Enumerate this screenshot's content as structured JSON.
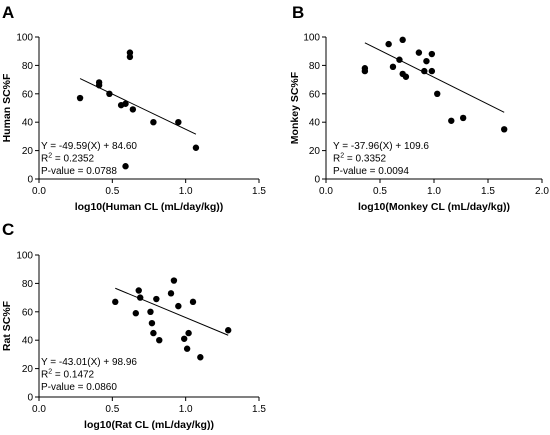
{
  "chart_data": [
    {
      "panel": "A",
      "type": "scatter",
      "xlabel": "log10(Human CL (mL/day/kg))",
      "ylabel": "Human SC%F",
      "xlim": [
        0,
        1.5
      ],
      "ylim": [
        0,
        100
      ],
      "xticks": [
        0.0,
        0.5,
        1.0,
        1.5
      ],
      "xtick_labels": [
        "0.0",
        "0.5",
        "1.0",
        "1.5"
      ],
      "yticks": [
        0,
        20,
        40,
        60,
        80,
        100
      ],
      "ytick_labels": [
        "0",
        "20",
        "40",
        "60",
        "80",
        "100"
      ],
      "points": [
        {
          "x": 0.28,
          "y": 57
        },
        {
          "x": 0.41,
          "y": 68
        },
        {
          "x": 0.41,
          "y": 66
        },
        {
          "x": 0.48,
          "y": 60
        },
        {
          "x": 0.56,
          "y": 52
        },
        {
          "x": 0.59,
          "y": 53
        },
        {
          "x": 0.59,
          "y": 9
        },
        {
          "x": 0.62,
          "y": 89
        },
        {
          "x": 0.62,
          "y": 86
        },
        {
          "x": 0.64,
          "y": 49
        },
        {
          "x": 0.78,
          "y": 40
        },
        {
          "x": 0.95,
          "y": 40
        },
        {
          "x": 1.07,
          "y": 22
        }
      ],
      "regression": {
        "slope": -49.59,
        "intercept": 84.6,
        "x_range": [
          0.28,
          1.07
        ]
      },
      "annotation": {
        "equation": "Y = -49.59(X) + 84.60",
        "r2_label": "R",
        "r2_value": " = 0.2352",
        "p_value": "P-value = 0.0788"
      }
    },
    {
      "panel": "B",
      "type": "scatter",
      "xlabel": "log10(Monkey CL (mL/day/kg))",
      "ylabel": "Monkey SC%F",
      "xlim": [
        0,
        2.0
      ],
      "ylim": [
        0,
        100
      ],
      "xticks": [
        0.0,
        0.5,
        1.0,
        1.5,
        2.0
      ],
      "xtick_labels": [
        "0.0",
        "0.5",
        "1.0",
        "1.5",
        "2.0"
      ],
      "yticks": [
        0,
        20,
        40,
        60,
        80,
        100
      ],
      "ytick_labels": [
        "0",
        "20",
        "40",
        "60",
        "80",
        "100"
      ],
      "points": [
        {
          "x": 0.36,
          "y": 78
        },
        {
          "x": 0.36,
          "y": 76
        },
        {
          "x": 0.58,
          "y": 95
        },
        {
          "x": 0.62,
          "y": 79
        },
        {
          "x": 0.68,
          "y": 84
        },
        {
          "x": 0.71,
          "y": 98
        },
        {
          "x": 0.71,
          "y": 74
        },
        {
          "x": 0.74,
          "y": 72
        },
        {
          "x": 0.86,
          "y": 89
        },
        {
          "x": 0.91,
          "y": 76
        },
        {
          "x": 0.93,
          "y": 83
        },
        {
          "x": 0.98,
          "y": 88
        },
        {
          "x": 0.98,
          "y": 76
        },
        {
          "x": 1.03,
          "y": 60
        },
        {
          "x": 1.16,
          "y": 41
        },
        {
          "x": 1.27,
          "y": 43
        },
        {
          "x": 1.65,
          "y": 35
        }
      ],
      "regression": {
        "slope": -37.96,
        "intercept": 109.6,
        "x_range": [
          0.36,
          1.65
        ]
      },
      "annotation": {
        "equation": "Y = -37.96(X) + 109.6",
        "r2_label": "R",
        "r2_value": " = 0.3352",
        "p_value": "P-value = 0.0094"
      }
    },
    {
      "panel": "C",
      "type": "scatter",
      "xlabel": "log10(Rat CL (mL/day/kg))",
      "ylabel": "Rat SC%F",
      "xlim": [
        0,
        1.5
      ],
      "ylim": [
        0,
        100
      ],
      "xticks": [
        0.0,
        0.5,
        1.0,
        1.5
      ],
      "xtick_labels": [
        "0.0",
        "0.5",
        "1.0",
        "1.5"
      ],
      "yticks": [
        0,
        20,
        40,
        60,
        80,
        100
      ],
      "ytick_labels": [
        "0",
        "20",
        "40",
        "60",
        "80",
        "100"
      ],
      "points": [
        {
          "x": 0.52,
          "y": 67
        },
        {
          "x": 0.66,
          "y": 59
        },
        {
          "x": 0.68,
          "y": 75
        },
        {
          "x": 0.69,
          "y": 70
        },
        {
          "x": 0.76,
          "y": 60
        },
        {
          "x": 0.77,
          "y": 52
        },
        {
          "x": 0.78,
          "y": 45
        },
        {
          "x": 0.8,
          "y": 69
        },
        {
          "x": 0.82,
          "y": 40
        },
        {
          "x": 0.9,
          "y": 73
        },
        {
          "x": 0.92,
          "y": 82
        },
        {
          "x": 0.95,
          "y": 64
        },
        {
          "x": 0.99,
          "y": 41
        },
        {
          "x": 1.01,
          "y": 34
        },
        {
          "x": 1.02,
          "y": 45
        },
        {
          "x": 1.05,
          "y": 67
        },
        {
          "x": 1.1,
          "y": 28
        },
        {
          "x": 1.29,
          "y": 47
        }
      ],
      "regression": {
        "slope": -43.01,
        "intercept": 98.96,
        "x_range": [
          0.52,
          1.29
        ]
      },
      "annotation": {
        "equation": "Y = -43.01(X) + 98.96",
        "r2_label": "R",
        "r2_value": " = 0.1472",
        "p_value": "P-value = 0.0860"
      }
    }
  ]
}
